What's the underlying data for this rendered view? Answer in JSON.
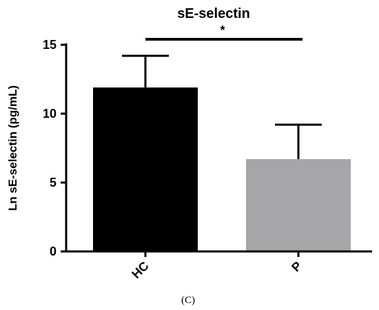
{
  "chart_data": {
    "type": "bar",
    "title": "sE-selectin",
    "xlabel": "",
    "ylabel": "Ln sE-selectin (pg/mL)",
    "categories": [
      "HC",
      "P"
    ],
    "values": [
      11.9,
      6.7
    ],
    "error_upper": [
      14.2,
      9.2
    ],
    "bar_colors": [
      "#000000",
      "#a6a6a8"
    ],
    "ylim": [
      0,
      15
    ],
    "yticks": [
      "0",
      "5",
      "10",
      "15"
    ],
    "grid": false,
    "significance": {
      "between": [
        "HC",
        "P"
      ],
      "label": "*"
    }
  },
  "caption": "(C)"
}
